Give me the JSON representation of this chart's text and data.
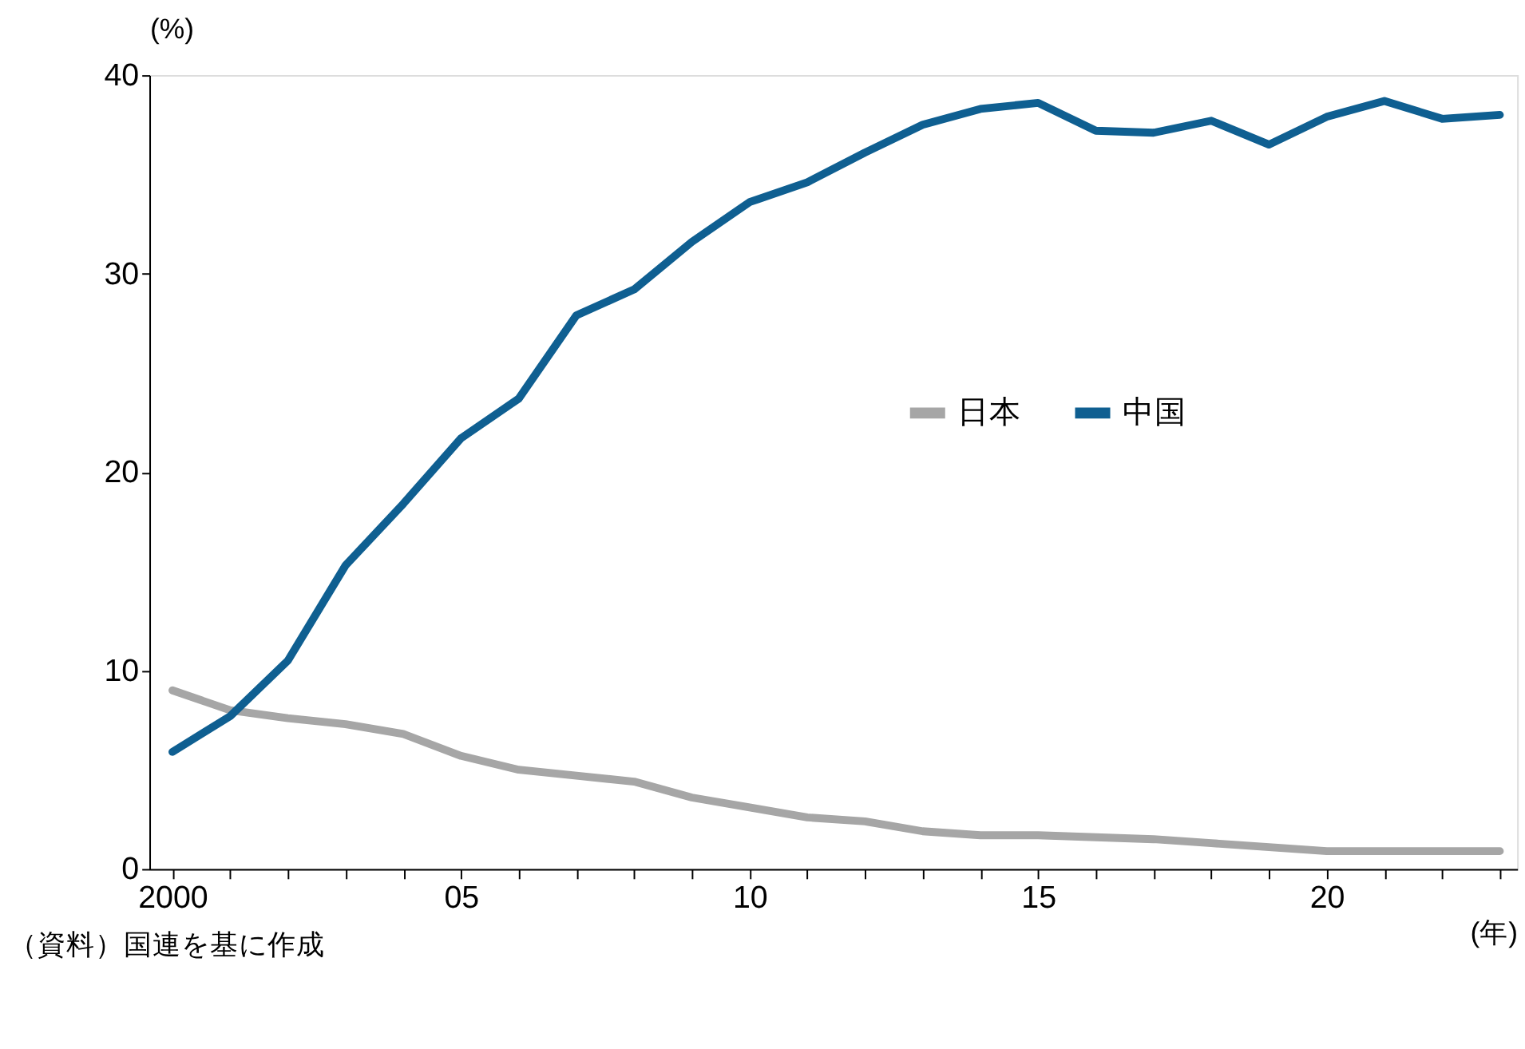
{
  "chart_data": {
    "type": "line",
    "x": [
      2000,
      2001,
      2002,
      2003,
      2004,
      2005,
      2006,
      2007,
      2008,
      2009,
      2010,
      2011,
      2012,
      2013,
      2014,
      2015,
      2016,
      2017,
      2018,
      2019,
      2020,
      2021,
      2022,
      2023
    ],
    "series": [
      {
        "name": "日本",
        "color": "#a6a6a6",
        "values": [
          9.0,
          8.0,
          7.6,
          7.3,
          6.8,
          5.7,
          5.0,
          4.7,
          4.4,
          3.6,
          3.1,
          2.6,
          2.4,
          1.9,
          1.7,
          1.7,
          1.6,
          1.5,
          1.3,
          1.1,
          0.9,
          0.9,
          0.9,
          0.9
        ]
      },
      {
        "name": "中国",
        "color": "#0f5f91",
        "values": [
          5.9,
          7.7,
          10.5,
          15.3,
          18.4,
          21.7,
          23.7,
          27.9,
          29.2,
          31.6,
          33.6,
          34.6,
          36.1,
          37.5,
          38.3,
          38.6,
          37.2,
          37.1,
          37.7,
          36.5,
          37.9,
          38.7,
          37.8,
          38.0
        ]
      }
    ],
    "ylim": [
      0,
      40
    ],
    "yticks": [
      0,
      10,
      20,
      30,
      40
    ],
    "xlim": [
      1999.6,
      2023.3
    ],
    "xticks": [
      {
        "value": 2000,
        "label": "2000"
      },
      {
        "value": 2001,
        "label": null
      },
      {
        "value": 2002,
        "label": null
      },
      {
        "value": 2003,
        "label": null
      },
      {
        "value": 2004,
        "label": null
      },
      {
        "value": 2005,
        "label": "05"
      },
      {
        "value": 2006,
        "label": null
      },
      {
        "value": 2007,
        "label": null
      },
      {
        "value": 2008,
        "label": null
      },
      {
        "value": 2009,
        "label": null
      },
      {
        "value": 2010,
        "label": "10"
      },
      {
        "value": 2011,
        "label": null
      },
      {
        "value": 2012,
        "label": null
      },
      {
        "value": 2013,
        "label": null
      },
      {
        "value": 2014,
        "label": null
      },
      {
        "value": 2015,
        "label": "15"
      },
      {
        "value": 2016,
        "label": null
      },
      {
        "value": 2017,
        "label": null
      },
      {
        "value": 2018,
        "label": null
      },
      {
        "value": 2019,
        "label": null
      },
      {
        "value": 2020,
        "label": "20"
      },
      {
        "value": 2021,
        "label": null
      },
      {
        "value": 2022,
        "label": null
      },
      {
        "value": 2023,
        "label": null
      }
    ],
    "ylabel": "(%)",
    "xlabel": "(年)",
    "annotations": [
      "（資料）国連を基に作成"
    ],
    "legend": "right",
    "grid": false,
    "marker": "none",
    "line_style": "solid"
  }
}
